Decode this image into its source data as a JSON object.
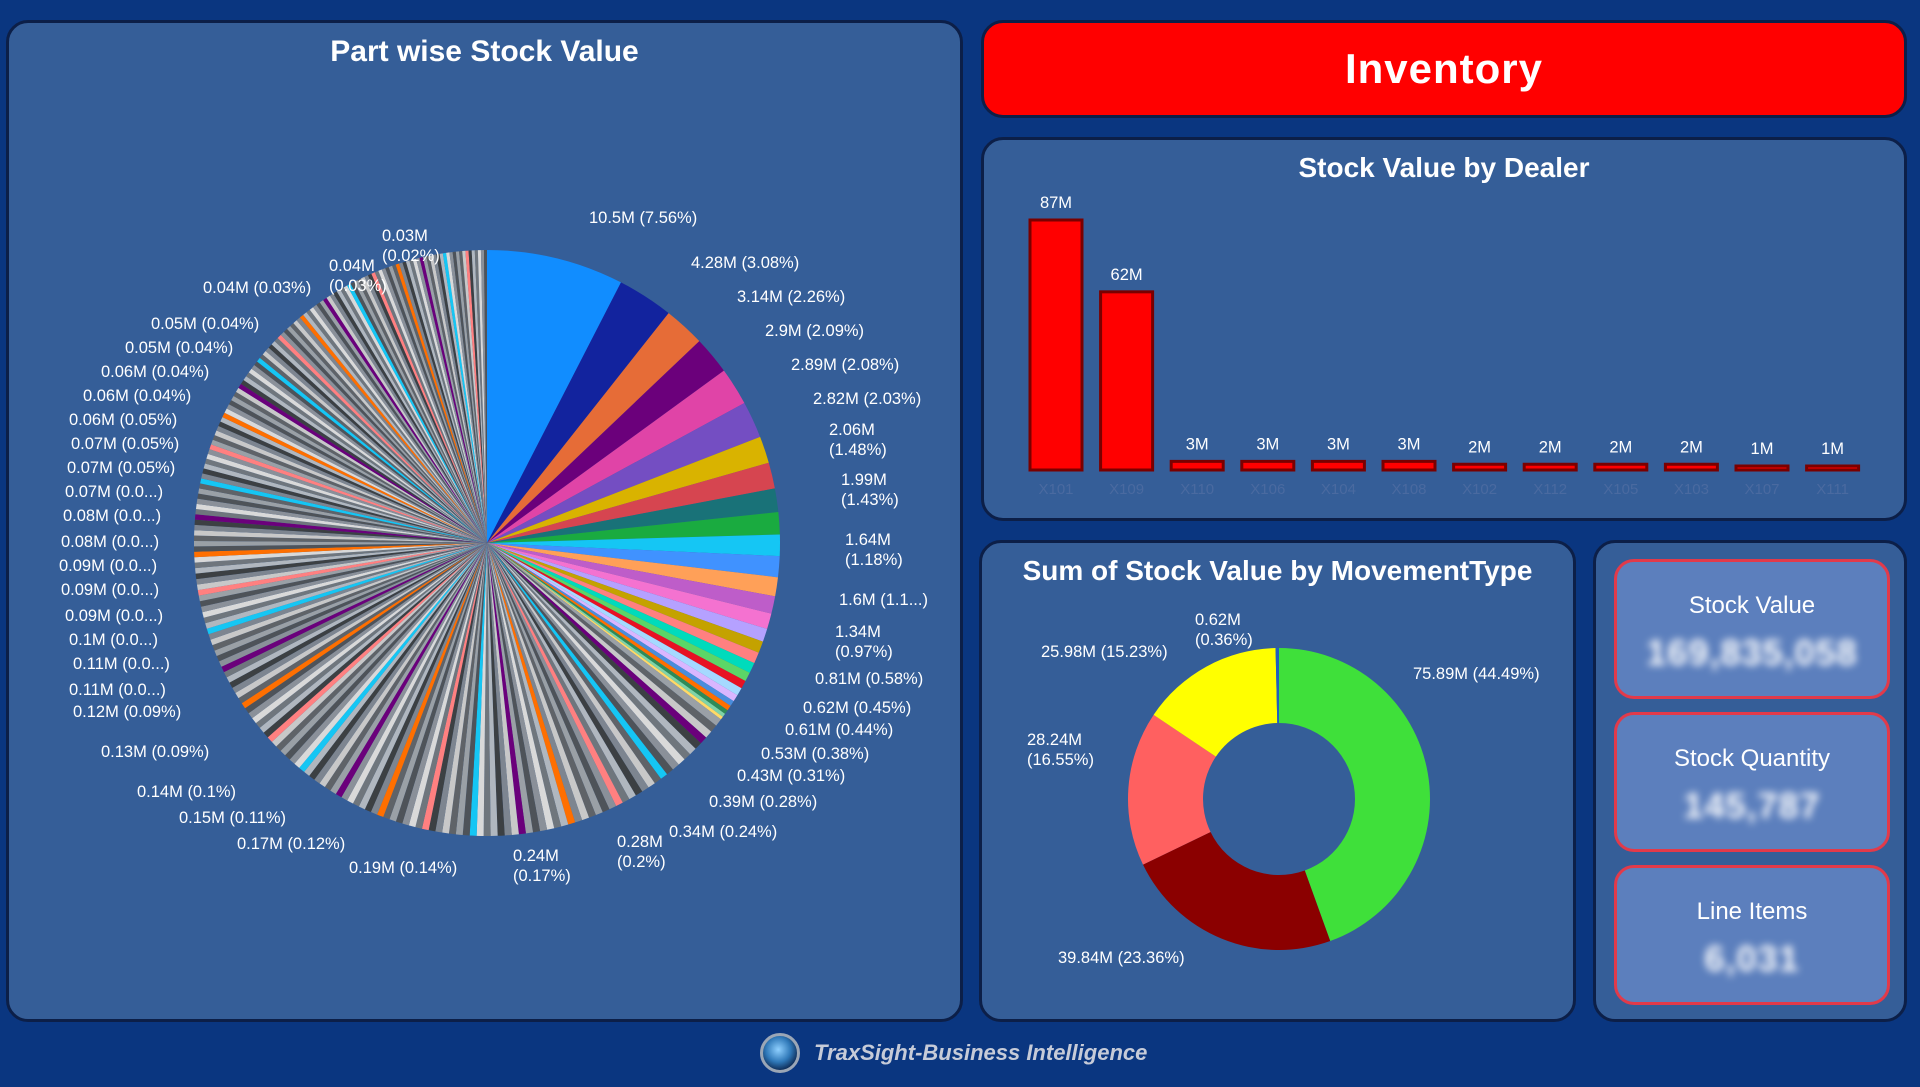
{
  "banner": {
    "title": "Inventory"
  },
  "footer": {
    "brand": "TraxSight-Business Intelligence",
    "logo_icon": "globe-logo-icon"
  },
  "kpis": [
    {
      "label": "Stock Value",
      "value": "169,835,058"
    },
    {
      "label": "Stock Quantity",
      "value": "145,787"
    },
    {
      "label": "Line Items",
      "value": "6,031"
    }
  ],
  "chart_data": [
    {
      "type": "pie",
      "title": "Part wise Stock Value",
      "unit": "M",
      "total_share_pct": 100,
      "labeled_slices": [
        {
          "value": 10.5,
          "label": "10.5M (7.56%)",
          "color": "#118dff"
        },
        {
          "value": 4.28,
          "label": "4.28M (3.08%)",
          "color": "#12239e"
        },
        {
          "value": 3.14,
          "label": "3.14M (2.26%)",
          "color": "#e66c37"
        },
        {
          "value": 2.9,
          "label": "2.9M (2.09%)",
          "color": "#6b007b"
        },
        {
          "value": 2.89,
          "label": "2.89M (2.08%)",
          "color": "#e044a7"
        },
        {
          "value": 2.82,
          "label": "2.82M (2.03%)",
          "color": "#744ec2"
        },
        {
          "value": 2.06,
          "label": "2.06M (1.48%)",
          "color": "#d9b300"
        },
        {
          "value": 1.99,
          "label": "1.99M (1.43%)",
          "color": "#d64550"
        },
        {
          "value": 1.8,
          "label": "",
          "color": "#197278"
        },
        {
          "value": 1.7,
          "label": "",
          "color": "#1aab40"
        },
        {
          "value": 1.64,
          "label": "1.64M (1.18%)",
          "color": "#15c6f4"
        },
        {
          "value": 1.6,
          "label": "1.6M (1.1...)",
          "color": "#4092ff"
        },
        {
          "value": 1.45,
          "label": "",
          "color": "#ffa058"
        },
        {
          "value": 1.34,
          "label": "1.34M (0.97%)",
          "color": "#be5dc9"
        },
        {
          "value": 1.2,
          "label": "",
          "color": "#f472d0"
        },
        {
          "value": 1.0,
          "label": "",
          "color": "#b5a1ff"
        },
        {
          "value": 0.9,
          "label": "",
          "color": "#c4a200"
        },
        {
          "value": 0.85,
          "label": "",
          "color": "#ff8080"
        },
        {
          "value": 0.81,
          "label": "0.81M (0.58%)",
          "color": "#00dbbc"
        },
        {
          "value": 0.7,
          "label": "",
          "color": "#5bd667"
        },
        {
          "value": 0.62,
          "label": "0.62M (0.45%)",
          "color": "#e81123"
        },
        {
          "value": 0.61,
          "label": "0.61M (0.44%)",
          "color": "#a5d9ff"
        },
        {
          "value": 0.53,
          "label": "0.53M (0.38%)",
          "color": "#d9b6ff"
        },
        {
          "value": 0.43,
          "label": "0.43M (0.31%)",
          "color": "#4a8ddc"
        },
        {
          "value": 0.39,
          "label": "0.39M (0.28%)",
          "color": "#ff6f00"
        },
        {
          "value": 0.34,
          "label": "0.34M (0.24%)",
          "color": "#2e8b57"
        },
        {
          "value": 0.28,
          "label": "0.28M (0.2%)",
          "color": "#7fd4a8"
        },
        {
          "value": 0.24,
          "label": "0.24M (0.17%)",
          "color": "#ffd966"
        }
      ],
      "other_labels": [
        "0.24M (0.17%)",
        "0.19M (0.14%)",
        "0.17M (0.12%)",
        "0.15M (0.11%)",
        "0.14M (0.1%)",
        "0.13M (0.09%)",
        "0.12M (0.09%)",
        "0.11M (0.0...)",
        "0.11M (0.0...)",
        "0.1M (0.0...)",
        "0.09M (0.0...)",
        "0.09M (0.0...)",
        "0.09M (0.0...)",
        "0.08M (0.0...)",
        "0.08M (0.0...)",
        "0.07M (0.0...)",
        "0.07M (0.05%)",
        "0.07M (0.05%)",
        "0.06M (0.05%)",
        "0.06M (0.04%)",
        "0.06M (0.04%)",
        "0.05M (0.04%)",
        "0.05M (0.04%)",
        "0.04M (0.03%)",
        "0.04M (0.03%)",
        "0.03M (0.02%)"
      ],
      "grey_palette": [
        "#9aa0a6",
        "#5f6368",
        "#c8c8c8",
        "#7d8590",
        "#3c4043",
        "#b0b7bf",
        "#6f767d",
        "#d9d9d9",
        "#8a9099",
        "#4e5359"
      ]
    },
    {
      "type": "bar",
      "title": "Stock Value by Dealer",
      "categories": [
        "X101",
        "X109",
        "X110",
        "X106",
        "X104",
        "X108",
        "X102",
        "X112",
        "X105",
        "X103",
        "X107",
        "X111"
      ],
      "values": [
        87,
        62,
        3,
        3,
        3,
        3,
        2,
        2,
        2,
        2,
        1,
        1
      ],
      "data_labels": [
        "87M",
        "62M",
        "3M",
        "3M",
        "3M",
        "3M",
        "2M",
        "2M",
        "2M",
        "2M",
        "1M",
        "1M"
      ],
      "unit": "M",
      "ylim": [
        0,
        87
      ],
      "bar_color": "#ff0000",
      "bar_border_color": "#7a0000"
    },
    {
      "type": "pie",
      "variant": "donut",
      "title": "Sum of Stock Value by MovementType",
      "series": [
        {
          "value": 75.89,
          "label": "75.89M (44.49%)",
          "color": "#3fe03a"
        },
        {
          "value": 39.84,
          "label": "39.84M (23.36%)",
          "color": "#8b0000"
        },
        {
          "value": 28.24,
          "label": "28.24M (16.55%)",
          "color": "#ff6060"
        },
        {
          "value": 25.98,
          "label": "25.98M (15.23%)",
          "color": "#ffff00"
        },
        {
          "value": 0.62,
          "label": "0.62M (0.36%)",
          "color": "#1f5fc0"
        }
      ]
    }
  ]
}
